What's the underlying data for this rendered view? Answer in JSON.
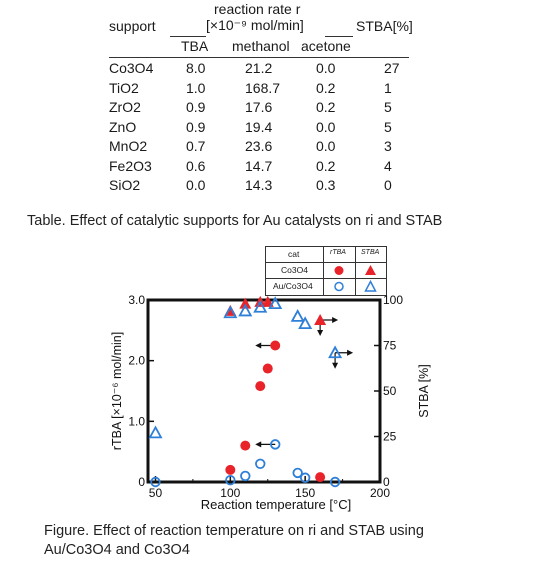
{
  "table": {
    "header": {
      "reaction_rate": "reaction rate r",
      "unit": "[×10⁻⁹ mol/min]",
      "support": "support",
      "stba": "STBA[%]",
      "cols": [
        "TBA",
        "methanol",
        "acetone"
      ]
    },
    "rows": [
      {
        "support": "Co3O4",
        "tba": "8.0",
        "methanol": "21.2",
        "acetone": "0.0",
        "stba": "27"
      },
      {
        "support": "TiO2",
        "tba": "1.0",
        "methanol": "168.7",
        "acetone": "0.2",
        "stba": "1"
      },
      {
        "support": "ZrO2",
        "tba": "0.9",
        "methanol": "17.6",
        "acetone": "0.2",
        "stba": "5"
      },
      {
        "support": "ZnO",
        "tba": "0.9",
        "methanol": "19.4",
        "acetone": "0.0",
        "stba": "5"
      },
      {
        "support": "MnO2",
        "tba": "0.7",
        "methanol": "23.6",
        "acetone": "0.0",
        "stba": "3"
      },
      {
        "support": "Fe2O3",
        "tba": "0.6",
        "methanol": "14.7",
        "acetone": "0.2",
        "stba": "4"
      },
      {
        "support": "SiO2",
        "tba": "0.0",
        "methanol": "14.3",
        "acetone": "0.3",
        "stba": "0"
      }
    ]
  },
  "table_caption": "Table.  Effect of catalytic supports for  Au catalysts on ri and STAB",
  "legend": {
    "header": [
      "cat",
      "rTBA",
      "STBA"
    ],
    "rows": [
      {
        "cat": "Co3O4"
      },
      {
        "cat": "Au/Co3O4"
      }
    ]
  },
  "figure_caption_line1": "Figure.  Effect of reaction temperature on ri and STAB using",
  "figure_caption_line2": "Au/Co3O4 and Co3O4",
  "chart_data": {
    "type": "scatter",
    "xlabel": "Reaction temperature [°C]",
    "ylabel": "rTBA [×10⁻⁶ mol/min]",
    "y2label": "STBA [%]",
    "xlim": [
      45,
      200
    ],
    "ylim": [
      0,
      3.0
    ],
    "y2lim": [
      0,
      100
    ],
    "xticks": [
      "50",
      "100",
      "150",
      "200"
    ],
    "yticks": [
      "0",
      "1.0",
      "2.0",
      "3.0"
    ],
    "y2ticks": [
      "0",
      "25",
      "50",
      "75",
      "100"
    ],
    "colors": {
      "red": "#e8242a",
      "blue": "#2e7fd8"
    },
    "series": [
      {
        "name": "Co3O4 rTBA",
        "marker": "filled-circle",
        "axis": "left",
        "x": [
          100,
          110,
          120,
          125,
          130,
          160
        ],
        "y": [
          0.2,
          0.6,
          1.58,
          1.87,
          2.25,
          0.08
        ]
      },
      {
        "name": "Co3O4 STBA",
        "marker": "filled-triangle",
        "axis": "right",
        "x": [
          100,
          110,
          120,
          125,
          160
        ],
        "y": [
          94,
          98,
          99,
          99,
          89
        ]
      },
      {
        "name": "Au/Co3O4 rTBA",
        "marker": "open-circle",
        "axis": "left",
        "x": [
          50,
          100,
          110,
          120,
          130,
          145,
          150,
          170
        ],
        "y": [
          0.0,
          0.03,
          0.1,
          0.3,
          0.62,
          0.15,
          0.07,
          0.0
        ]
      },
      {
        "name": "Au/Co3O4 STBA",
        "marker": "open-triangle",
        "axis": "right",
        "x": [
          50,
          100,
          110,
          120,
          130,
          145,
          150,
          170
        ],
        "y": [
          27,
          93,
          94,
          96,
          98,
          91,
          87,
          71
        ]
      }
    ],
    "annotations": [
      {
        "x": 130,
        "y": 2.25,
        "axis": "left",
        "arrow": "left"
      },
      {
        "x": 130,
        "y": 0.62,
        "axis": "left",
        "arrow": "left"
      },
      {
        "x": 160,
        "y": 89,
        "axis": "right",
        "arrow": "right"
      },
      {
        "x": 170,
        "y": 71,
        "axis": "right",
        "arrow": "right"
      }
    ]
  }
}
